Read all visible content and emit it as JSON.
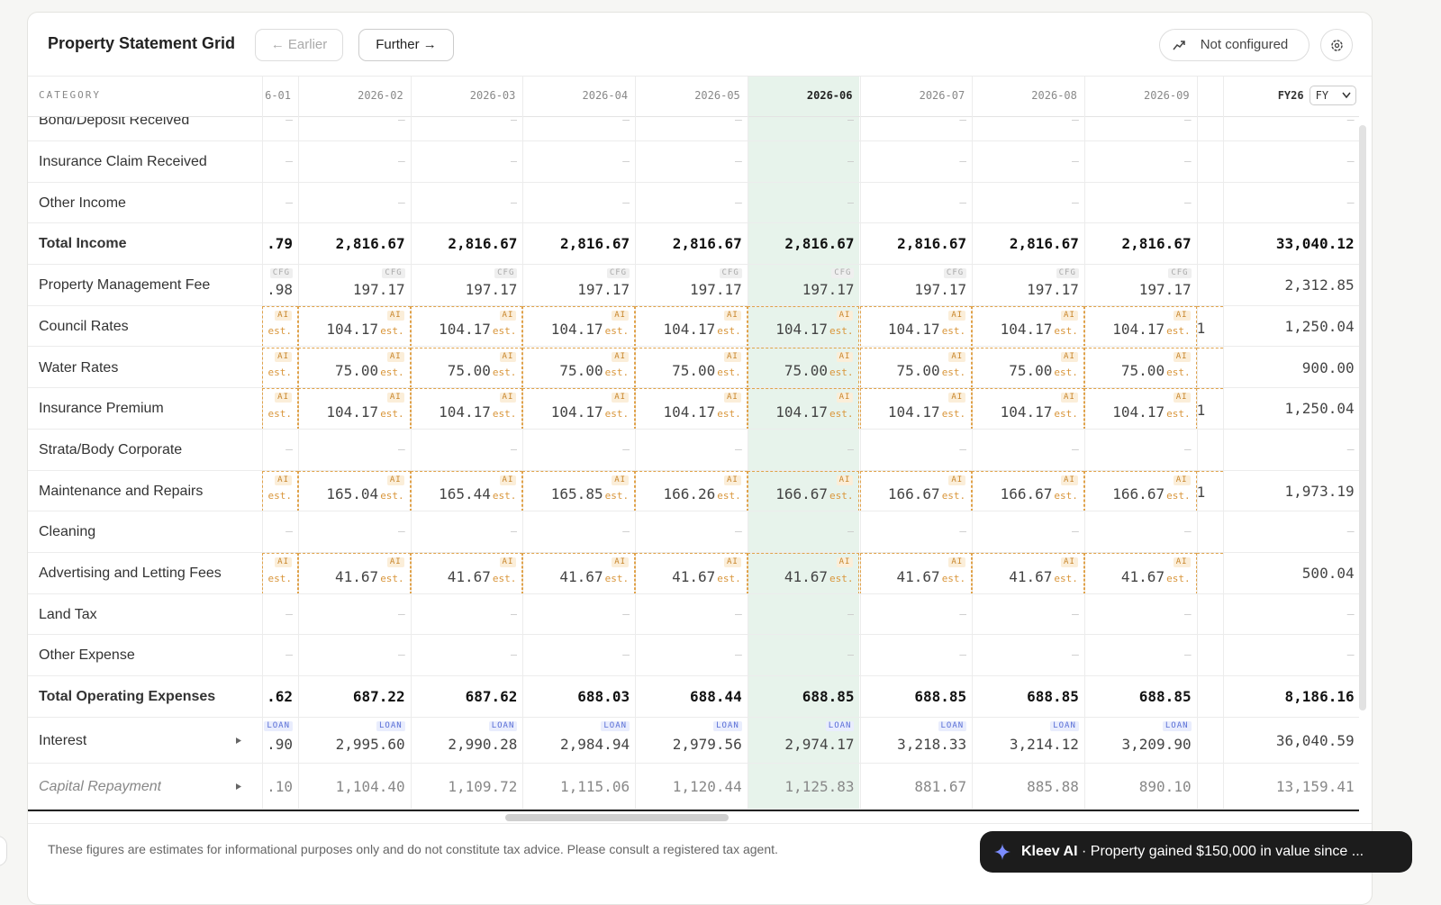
{
  "header": {
    "title": "Property Statement Grid",
    "earlier": "← Earlier",
    "further": "Further →",
    "status": "Not configured"
  },
  "table": {
    "category_header": "CATEGORY",
    "columns": [
      "6-01",
      "2026-02",
      "2026-03",
      "2026-04",
      "2026-05",
      "2026-06",
      "2026-07",
      "2026-08",
      "2026-09"
    ],
    "fy_header": "FY26",
    "fy_select": "FY",
    "rows": [
      {
        "label": "Bond/Deposit Received",
        "values": [
          "–",
          "–",
          "–",
          "–",
          "–",
          "–",
          "–",
          "–",
          "–"
        ],
        "total": "–"
      },
      {
        "label": "Insurance Claim Received",
        "values": [
          "–",
          "–",
          "–",
          "–",
          "–",
          "–",
          "–",
          "–",
          "–"
        ],
        "total": "–"
      },
      {
        "label": "Other Income",
        "values": [
          "–",
          "–",
          "–",
          "–",
          "–",
          "–",
          "–",
          "–",
          "–"
        ],
        "total": "–"
      },
      {
        "label": "Total Income",
        "kind": "total",
        "values": [
          ".79",
          "2,816.67",
          "2,816.67",
          "2,816.67",
          "2,816.67",
          "2,816.67",
          "2,816.67",
          "2,816.67",
          "2,816.67"
        ],
        "total": "33,040.12"
      },
      {
        "label": "Property Management Fee",
        "badge": "CFG",
        "values": [
          ".98",
          "197.17",
          "197.17",
          "197.17",
          "197.17",
          "197.17",
          "197.17",
          "197.17",
          "197.17"
        ],
        "total": "2,312.85"
      },
      {
        "label": "Council Rates",
        "badge": "AI",
        "suffix": "est.",
        "values": [
          null,
          "104.17",
          "104.17",
          "104.17",
          "104.17",
          "104.17",
          "104.17",
          "104.17",
          "104.17"
        ],
        "overflow": "1",
        "total": "1,250.04"
      },
      {
        "label": "Water Rates",
        "badge": "AI",
        "suffix": "est.",
        "values": [
          null,
          "75.00",
          "75.00",
          "75.00",
          "75.00",
          "75.00",
          "75.00",
          "75.00",
          "75.00"
        ],
        "total": "900.00"
      },
      {
        "label": "Insurance Premium",
        "badge": "AI",
        "suffix": "est.",
        "values": [
          null,
          "104.17",
          "104.17",
          "104.17",
          "104.17",
          "104.17",
          "104.17",
          "104.17",
          "104.17"
        ],
        "overflow": "1",
        "total": "1,250.04"
      },
      {
        "label": "Strata/Body Corporate",
        "values": [
          "–",
          "–",
          "–",
          "–",
          "–",
          "–",
          "–",
          "–",
          "–"
        ],
        "total": "–"
      },
      {
        "label": "Maintenance and Repairs",
        "badge": "AI",
        "suffix": "est.",
        "values": [
          null,
          "165.04",
          "165.44",
          "165.85",
          "166.26",
          "166.67",
          "166.67",
          "166.67",
          "166.67"
        ],
        "overflow": "1",
        "total": "1,973.19"
      },
      {
        "label": "Cleaning",
        "values": [
          "–",
          "–",
          "–",
          "–",
          "–",
          "–",
          "–",
          "–",
          "–"
        ],
        "total": "–"
      },
      {
        "label": "Advertising and Letting Fees",
        "badge": "AI",
        "suffix": "est.",
        "values": [
          null,
          "41.67",
          "41.67",
          "41.67",
          "41.67",
          "41.67",
          "41.67",
          "41.67",
          "41.67"
        ],
        "total": "500.04"
      },
      {
        "label": "Land Tax",
        "values": [
          "–",
          "–",
          "–",
          "–",
          "–",
          "–",
          "–",
          "–",
          "–"
        ],
        "total": "–"
      },
      {
        "label": "Other Expense",
        "values": [
          "–",
          "–",
          "–",
          "–",
          "–",
          "–",
          "–",
          "–",
          "–"
        ],
        "total": "–"
      },
      {
        "label": "Total Operating Expenses",
        "kind": "total",
        "values": [
          ".62",
          "687.22",
          "687.62",
          "688.03",
          "688.44",
          "688.85",
          "688.85",
          "688.85",
          "688.85"
        ],
        "total": "8,186.16"
      },
      {
        "label": "Interest",
        "kind": "loan",
        "badge": "LOAN",
        "values": [
          ".90",
          "2,995.60",
          "2,990.28",
          "2,984.94",
          "2,979.56",
          "2,974.17",
          "3,218.33",
          "3,214.12",
          "3,209.90"
        ],
        "total": "36,040.59"
      },
      {
        "label": "Capital Repayment",
        "kind": "loan-italic",
        "values": [
          ".10",
          "1,104.40",
          "1,109.72",
          "1,115.06",
          "1,120.44",
          "1,125.83",
          "881.67",
          "885.88",
          "890.10"
        ],
        "total": "13,159.41"
      }
    ]
  },
  "footer": {
    "disclaimer": "These figures are estimates for informational purposes only and do not constitute tax advice. Please consult a registered tax agent."
  },
  "toast": {
    "brand": "Kleev AI",
    "message": "· Property gained $150,000 in value since ..."
  }
}
